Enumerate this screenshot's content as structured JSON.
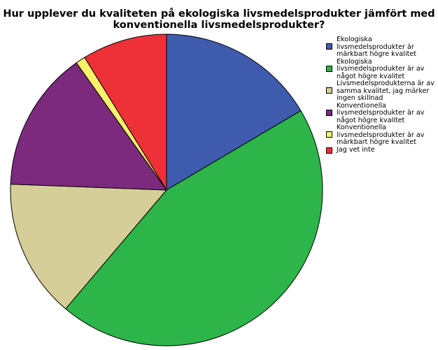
{
  "chart_data": {
    "type": "pie",
    "title_lines": [
      "Hur upplever du kvaliteten på ekologiska livsmedelsprodukter jämfört med",
      "konventionella livsmedelsprodukter?"
    ],
    "slices": [
      {
        "label": "Ekologiska livsmedelsprodukter är märkbart högre kvalitet",
        "value": 16.5,
        "color": "#3F5BAE"
      },
      {
        "label": "Ekologiska livsmedelsprodukter är av något högre kvalitet",
        "value": 44.7,
        "color": "#2DB54A"
      },
      {
        "label": "Livsmedelsprodukterna är av samma kvalitet, jag märker ingen skillnad",
        "value": 14.4,
        "color": "#D6CE98"
      },
      {
        "label": "Konventionella livsmedelsprodukter är av något högre kvalitet",
        "value": 14.6,
        "color": "#7C2A7E"
      },
      {
        "label": "Konventionella livsmedelsprodukter är av märkbart högre kvalitet",
        "value": 1.0,
        "color": "#F9F36A"
      },
      {
        "label": "Jag vet inte",
        "value": 8.8,
        "color": "#EE3138"
      }
    ],
    "legend_position": "right",
    "start_angle": "12 o'clock",
    "direction": "clockwise"
  }
}
